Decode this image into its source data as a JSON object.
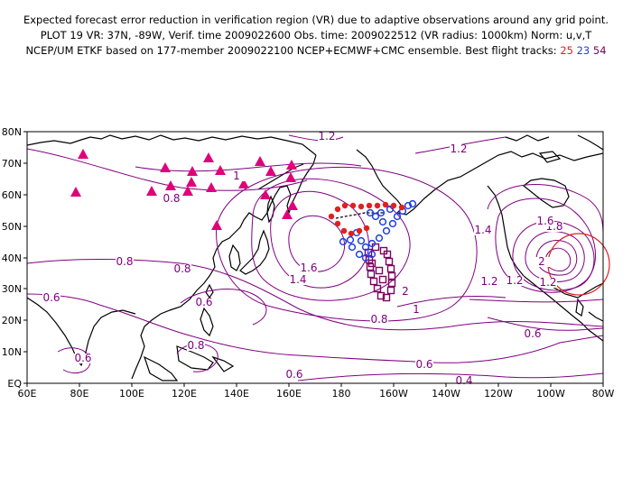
{
  "header": {
    "line1": "Expected forecast error reduction in verification region (VR) due to adaptive observations around any grid point.",
    "line2": "PLOT 19 VR: 37N, -89W, Verif. time 2009022600 Obs. time: 2009022512 (VR radius: 1000km) Norm: u,v,T",
    "line3_prefix": "NCEP/UM ETKF based on 177-member 2009022100 NCEP+ECMWF+CMC ensemble. Best flight tracks:",
    "tracks": [
      "25",
      "23",
      "54"
    ]
  },
  "colors": {
    "contour": "#800080",
    "track_25": "#e02020",
    "track_23": "#2040e0",
    "track_54": "#800060",
    "triangles": "#e0007a",
    "vr_circle": "#e02020",
    "coast": "#000000"
  },
  "axes": {
    "lon_labels": [
      "60E",
      "80E",
      "100E",
      "120E",
      "140E",
      "160E",
      "180",
      "160W",
      "140W",
      "120W",
      "100W",
      "80W"
    ],
    "lat_labels": [
      "EQ",
      "10N",
      "20N",
      "30N",
      "40N",
      "50N",
      "60N",
      "70N",
      "80N"
    ]
  },
  "contour_labels": [
    "1.2",
    "1.2",
    "1",
    "0.8",
    "1.4",
    "1.6",
    "1.8",
    "2",
    "1.4",
    "1.2",
    "1.2",
    "1.6",
    "0.8",
    "0.8",
    "0.6",
    "0.6",
    "2",
    "1",
    "0.8",
    "1.2",
    "0.6",
    "0.8",
    "0.6",
    "0.6",
    "0.6",
    "0.4"
  ],
  "verification_region": {
    "lat": 37,
    "lon": -89,
    "radius_km": 1000
  }
}
